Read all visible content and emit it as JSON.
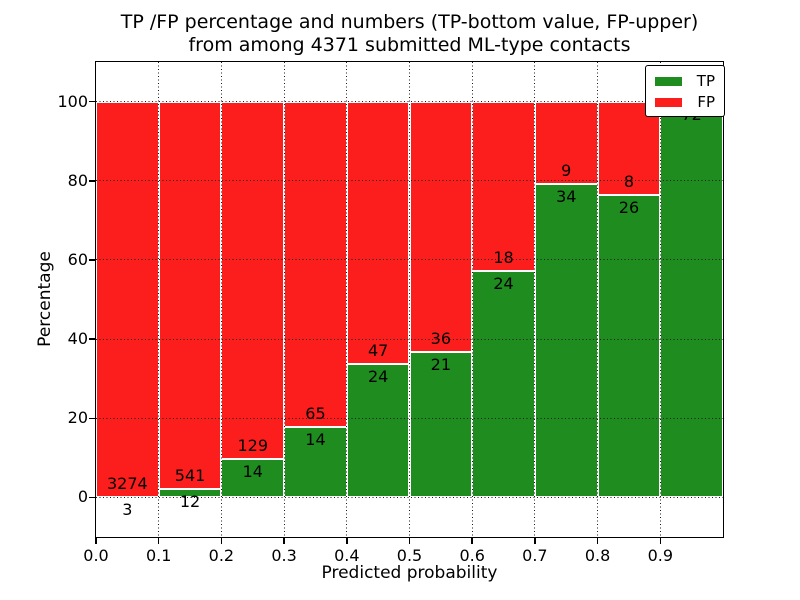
{
  "figure": {
    "title_lines": [
      "TP /FP percentage and numbers (TP-bottom value, FP-upper)",
      "from among 4371 submitted ML-type contacts"
    ]
  },
  "chart_data": {
    "type": "bar",
    "stacked": true,
    "normalization": "each bar scaled to 100% of bin total; labels show raw counts (TP bottom, FP upper)",
    "title": "TP /FP percentage and numbers (TP-bottom value, FP-upper) from among 4371 submitted ML-type contacts",
    "xlabel": "Predicted probability",
    "ylabel": "Percentage",
    "total_submitted": 4371,
    "xlim": [
      0.0,
      1.0
    ],
    "ylim": [
      -10,
      110
    ],
    "x_bin_edges": [
      0.0,
      0.1,
      0.2,
      0.3,
      0.4,
      0.5,
      0.6,
      0.7,
      0.8,
      0.9,
      1.0
    ],
    "xtick_labels": [
      "0.0",
      "0.1",
      "0.2",
      "0.3",
      "0.4",
      "0.5",
      "0.6",
      "0.7",
      "0.8",
      "0.9"
    ],
    "ytick_labels": [
      "0",
      "20",
      "40",
      "60",
      "80",
      "100"
    ],
    "grid": "dotted",
    "legend_position": "upper right",
    "series": [
      {
        "name": "TP",
        "color": "#1e8c1e",
        "counts": [
          3,
          12,
          14,
          14,
          24,
          21,
          24,
          34,
          26,
          72
        ]
      },
      {
        "name": "FP",
        "color": "#fc1d1d",
        "counts": [
          3274,
          541,
          129,
          65,
          47,
          36,
          18,
          9,
          8,
          0
        ]
      }
    ]
  }
}
